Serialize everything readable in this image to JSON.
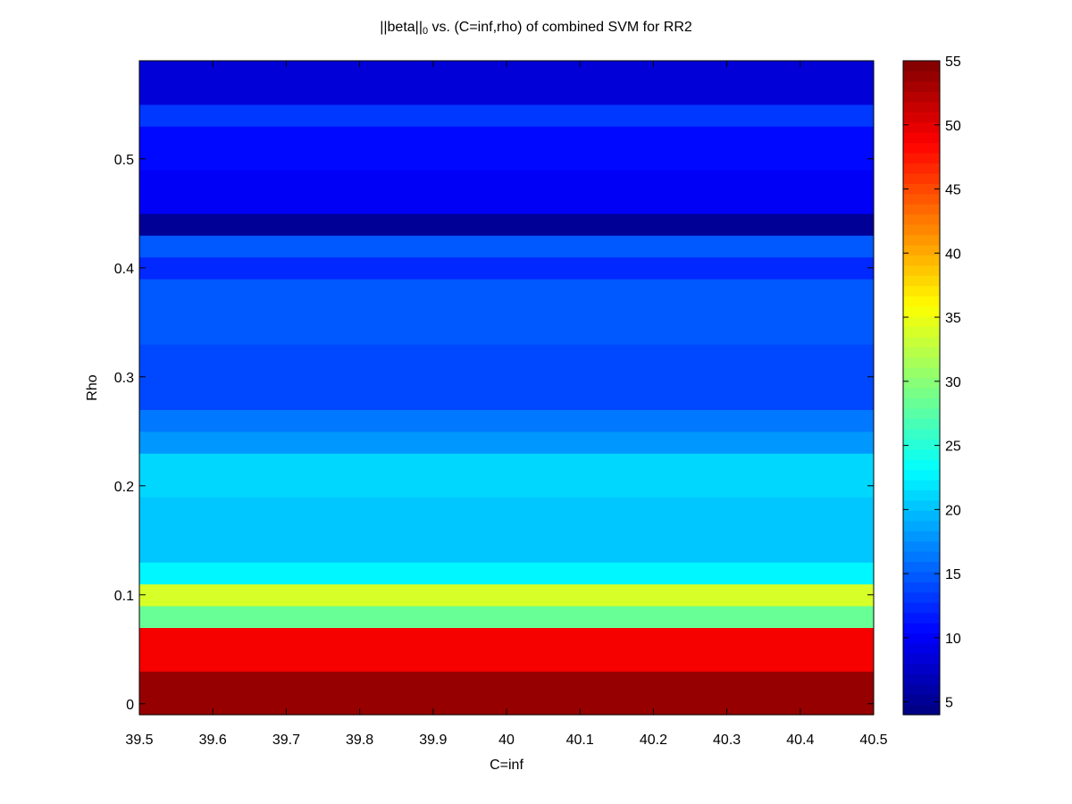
{
  "chart_data": {
    "type": "heatmap",
    "title": {
      "main": "||beta||",
      "subscript": "0",
      "rest": " vs. (C=inf,rho) of combined SVM for RR2"
    },
    "xlabel": "C=inf",
    "ylabel": "Rho",
    "xlim": [
      39.5,
      40.5
    ],
    "ylim": [
      -0.01,
      0.59
    ],
    "x_ticks": [
      39.5,
      39.6,
      39.7,
      39.8,
      39.9,
      40,
      40.1,
      40.2,
      40.3,
      40.4,
      40.5
    ],
    "x_tick_labels": [
      "39.5",
      "39.6",
      "39.7",
      "39.8",
      "39.9",
      "40",
      "40.1",
      "40.2",
      "40.3",
      "40.4",
      "40.5"
    ],
    "y_ticks": [
      0,
      0.1,
      0.2,
      0.3,
      0.4,
      0.5
    ],
    "y_tick_labels": [
      "0",
      "0.1",
      "0.2",
      "0.3",
      "0.4",
      "0.5"
    ],
    "rho_step": 0.02,
    "rho": [
      0,
      0.02,
      0.04,
      0.06,
      0.08,
      0.1,
      0.12,
      0.14,
      0.16,
      0.18,
      0.2,
      0.22,
      0.24,
      0.26,
      0.28,
      0.3,
      0.32,
      0.34,
      0.36,
      0.38,
      0.4,
      0.42,
      0.44,
      0.46,
      0.48,
      0.5,
      0.52,
      0.54,
      0.56,
      0.58
    ],
    "values": [
      54,
      54,
      49,
      49,
      28,
      34,
      23,
      20,
      20,
      20,
      21,
      21,
      18,
      16,
      14,
      14,
      14,
      15,
      15,
      15,
      12,
      15,
      5,
      10,
      10,
      11,
      11,
      13,
      8,
      8
    ],
    "colorbar": {
      "min": 4,
      "max": 55,
      "levels": 64,
      "colormap": "jet",
      "ticks": [
        5,
        10,
        15,
        20,
        25,
        30,
        35,
        40,
        45,
        50,
        55
      ],
      "tick_labels": [
        "5",
        "10",
        "15",
        "20",
        "25",
        "30",
        "35",
        "40",
        "45",
        "50",
        "55"
      ]
    }
  }
}
